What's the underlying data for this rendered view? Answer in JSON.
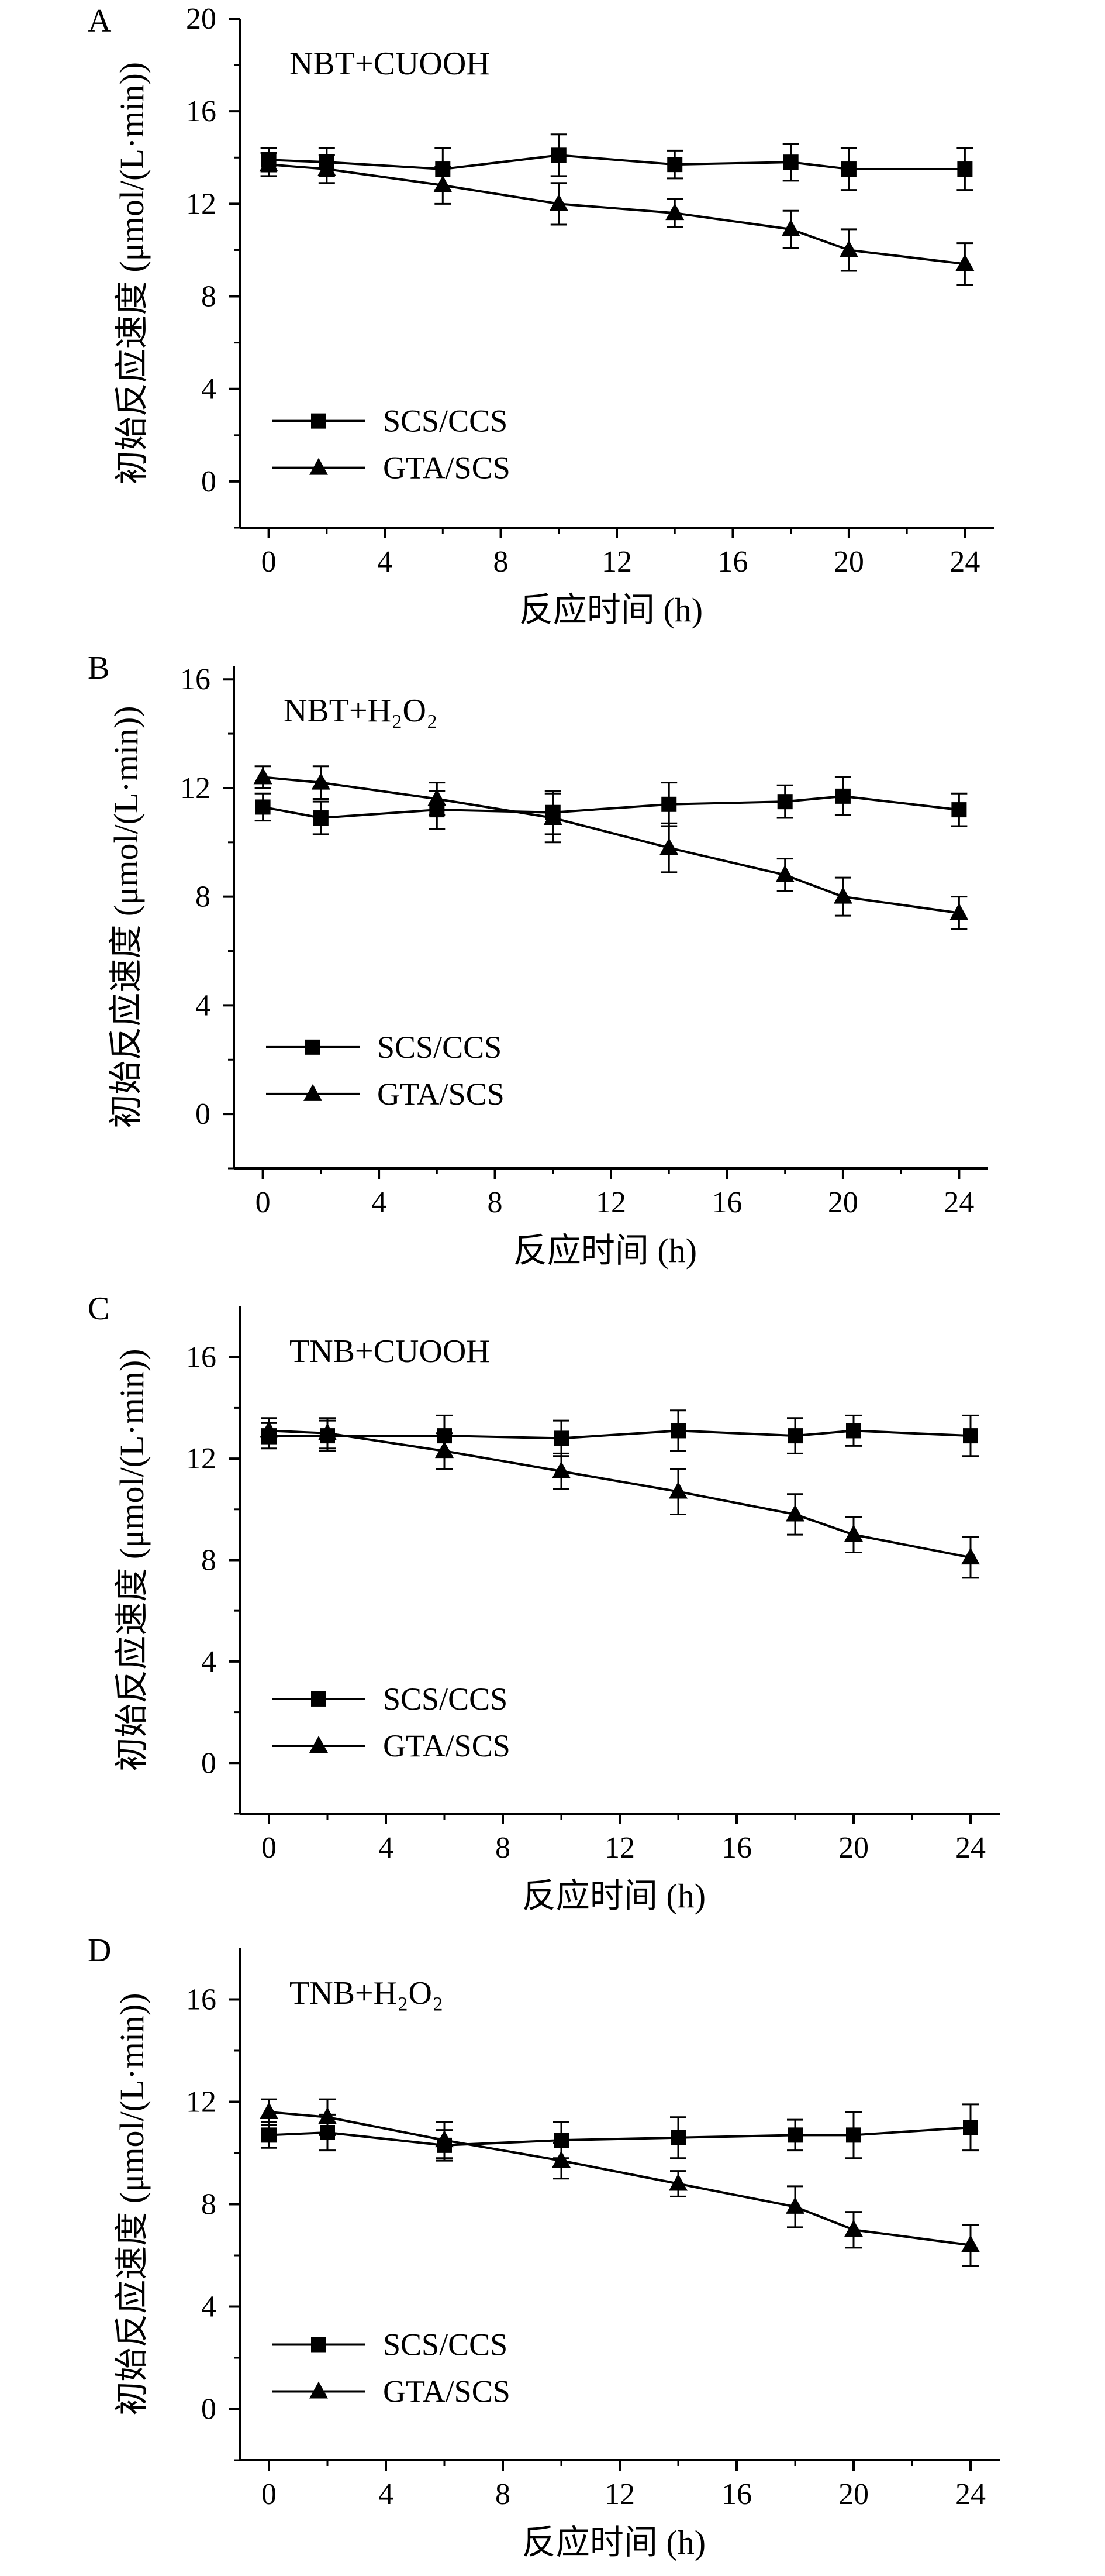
{
  "chart_data": [
    {
      "type": "line",
      "panel_label": "A",
      "title": "NBT+CUOOH",
      "xlabel": "反应时间 (h)",
      "ylabel": "初始反应速度 (μmol/(L·min))",
      "x": [
        0,
        2,
        6,
        10,
        14,
        18,
        20,
        24
      ],
      "xlim": [
        -1,
        25
      ],
      "ylim": [
        -2,
        20
      ],
      "xticks": [
        0,
        4,
        8,
        12,
        16,
        20,
        24
      ],
      "yticks": [
        0,
        4,
        8,
        12,
        16,
        20
      ],
      "xtick_labels": [
        "0",
        "4",
        "8",
        "12",
        "16",
        "20",
        "24"
      ],
      "ytick_labels": [
        "0",
        "4",
        "8",
        "12",
        "16",
        "20"
      ],
      "legend": "lower-left",
      "grid": false,
      "series": [
        {
          "name": "SCS/CCS",
          "marker": "square",
          "values": [
            13.9,
            13.8,
            13.5,
            14.1,
            13.7,
            13.8,
            13.5,
            13.5
          ],
          "errors": [
            0.5,
            0.6,
            0.9,
            0.9,
            0.6,
            0.8,
            0.9,
            0.9
          ]
        },
        {
          "name": "GTA/SCS",
          "marker": "triangle",
          "values": [
            13.7,
            13.5,
            12.8,
            12.0,
            11.6,
            10.9,
            10.0,
            9.4
          ],
          "errors": [
            0.5,
            0.6,
            0.8,
            0.9,
            0.6,
            0.8,
            0.9,
            0.9
          ]
        }
      ]
    },
    {
      "type": "line",
      "panel_label": "B",
      "title": "NBT+H₂O₂",
      "xlabel": "反应时间 (h)",
      "ylabel": "初始反应速度 (μmol/(L·min))",
      "x": [
        0,
        2,
        6,
        10,
        14,
        18,
        20,
        24
      ],
      "xlim": [
        -1,
        25
      ],
      "ylim": [
        -2,
        16.5
      ],
      "xticks": [
        0,
        4,
        8,
        12,
        16,
        20,
        24
      ],
      "yticks": [
        0,
        4,
        8,
        12,
        16
      ],
      "xtick_labels": [
        "0",
        "4",
        "8",
        "12",
        "16",
        "20",
        "24"
      ],
      "ytick_labels": [
        "0",
        "4",
        "8",
        "12",
        "16"
      ],
      "legend": "lower-left",
      "grid": false,
      "series": [
        {
          "name": "SCS/CCS",
          "marker": "square",
          "values": [
            11.3,
            10.9,
            11.2,
            11.1,
            11.4,
            11.5,
            11.7,
            11.2
          ],
          "errors": [
            0.5,
            0.6,
            0.7,
            0.8,
            0.8,
            0.6,
            0.7,
            0.6
          ]
        },
        {
          "name": "GTA/SCS",
          "marker": "triangle",
          "values": [
            12.4,
            12.2,
            11.6,
            10.9,
            9.8,
            8.8,
            8.0,
            7.4
          ],
          "errors": [
            0.4,
            0.6,
            0.6,
            0.9,
            0.9,
            0.6,
            0.7,
            0.6
          ]
        }
      ]
    },
    {
      "type": "line",
      "panel_label": "C",
      "title": "TNB+CUOOH",
      "xlabel": "反应时间 (h)",
      "ylabel": "初始反应速度 (μmol/(L·min))",
      "x": [
        0,
        2,
        6,
        10,
        14,
        18,
        20,
        24
      ],
      "xlim": [
        -1,
        25
      ],
      "ylim": [
        -2,
        18
      ],
      "xticks": [
        0,
        4,
        8,
        12,
        16,
        20,
        24
      ],
      "yticks": [
        0,
        4,
        8,
        12,
        16
      ],
      "xtick_labels": [
        "0",
        "4",
        "8",
        "12",
        "16",
        "20",
        "24"
      ],
      "ytick_labels": [
        "0",
        "4",
        "8",
        "12",
        "16"
      ],
      "legend": "lower-left",
      "grid": false,
      "series": [
        {
          "name": "SCS/CCS",
          "marker": "square",
          "values": [
            12.9,
            12.9,
            12.9,
            12.8,
            13.1,
            12.9,
            13.1,
            12.9
          ],
          "errors": [
            0.5,
            0.6,
            0.8,
            0.7,
            0.8,
            0.7,
            0.6,
            0.8
          ]
        },
        {
          "name": "GTA/SCS",
          "marker": "triangle",
          "values": [
            13.1,
            13.0,
            12.3,
            11.5,
            10.7,
            9.8,
            9.0,
            8.1
          ],
          "errors": [
            0.5,
            0.6,
            0.7,
            0.7,
            0.9,
            0.8,
            0.7,
            0.8
          ]
        }
      ]
    },
    {
      "type": "line",
      "panel_label": "D",
      "title": "TNB+H₂O₂",
      "xlabel": "反应时间 (h)",
      "ylabel": "初始反应速度 (μmol/(L·min))",
      "x": [
        0,
        2,
        6,
        10,
        14,
        18,
        20,
        24
      ],
      "xlim": [
        -1,
        25
      ],
      "ylim": [
        -2,
        18
      ],
      "xticks": [
        0,
        4,
        8,
        12,
        16,
        20,
        24
      ],
      "yticks": [
        0,
        4,
        8,
        12,
        16
      ],
      "xtick_labels": [
        "0",
        "4",
        "8",
        "12",
        "16",
        "20",
        "24"
      ],
      "ytick_labels": [
        "0",
        "4",
        "8",
        "12",
        "16"
      ],
      "legend": "lower-left",
      "grid": false,
      "series": [
        {
          "name": "SCS/CCS",
          "marker": "square",
          "values": [
            10.7,
            10.8,
            10.3,
            10.5,
            10.6,
            10.7,
            10.7,
            11.0
          ],
          "errors": [
            0.5,
            0.7,
            0.6,
            0.7,
            0.8,
            0.6,
            0.9,
            0.9
          ]
        },
        {
          "name": "GTA/SCS",
          "marker": "triangle",
          "values": [
            11.6,
            11.4,
            10.5,
            9.7,
            8.8,
            7.9,
            7.0,
            6.4
          ],
          "errors": [
            0.5,
            0.7,
            0.7,
            0.7,
            0.5,
            0.8,
            0.7,
            0.8
          ]
        }
      ]
    }
  ]
}
